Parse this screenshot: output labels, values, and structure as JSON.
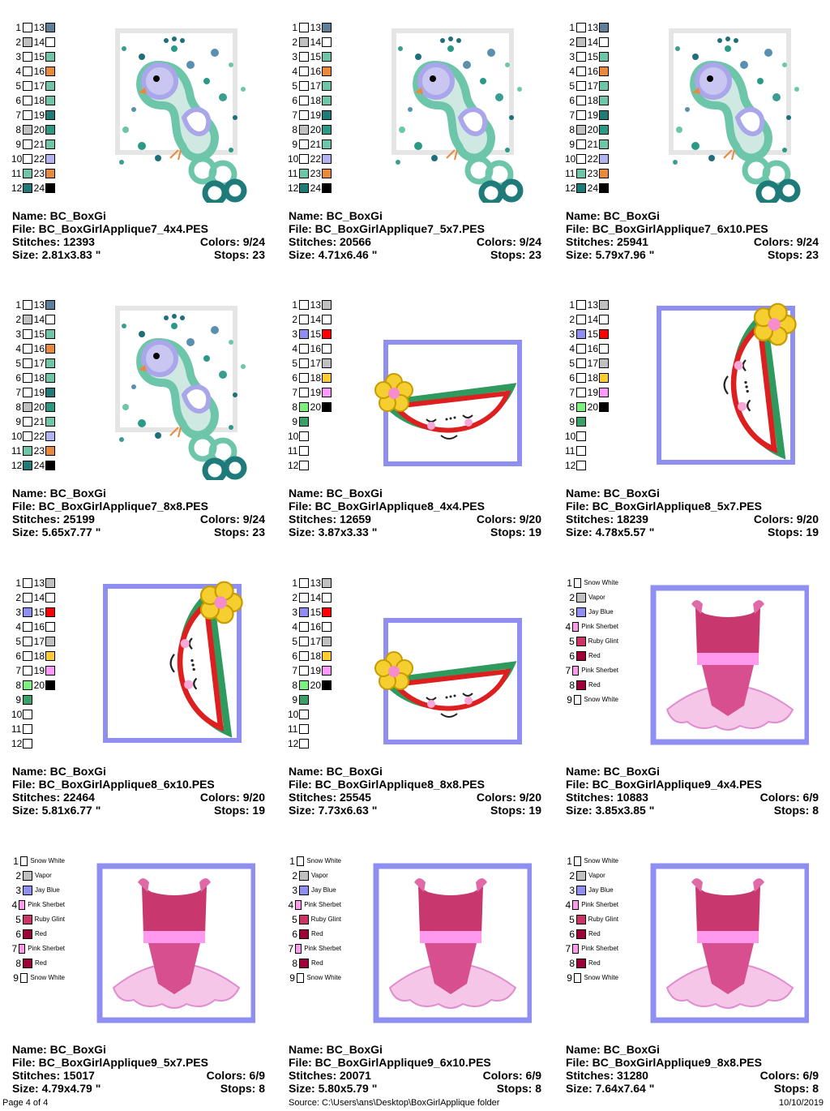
{
  "footer": {
    "page": "Page 4 of 4",
    "source": "Source: C:\\Users\\ans\\Desktop\\BoxGirlApplique folder",
    "date": "10/10/2019"
  },
  "palettes": {
    "peacock": [
      "#ffffff",
      "#c0c0c0",
      "#ffffff",
      "#ffffff",
      "#ffffff",
      "#ffffff",
      "#ffffff",
      "#c0c0c0",
      "#ffffff",
      "#ffffff",
      "#6ec6aa",
      "#1f7a7a",
      "#5e7f99",
      "#ffffff",
      "#6ec6aa",
      "#e88a3a",
      "#6ec6aa",
      "#6ec6aa",
      "#1f7a7a",
      "#2a9a86",
      "#6ec6aa",
      "#b3b3f2",
      "#e88a3a",
      "#000000"
    ],
    "watermelon": [
      "#ffffff",
      "#ffffff",
      "#8f8ff2",
      "#ffffff",
      "#ffffff",
      "#ffffff",
      "#ffffff",
      "#7ef07e",
      "#3aa06a",
      "#ffffff",
      "#ffffff",
      "#ffffff",
      "#c0c0c0",
      "#ffffff",
      "#ff0000",
      "#ffffff",
      "#c0c0c0",
      "#ffcc33",
      "#ff99ff",
      "#000000"
    ],
    "ballerina": [
      "#ffffff",
      "#c0c0c0",
      "#8f8ff2",
      "#ff99ee",
      "#cc3366",
      "#a0003a",
      "#ff99ee",
      "#a0003a",
      "#ffffff"
    ]
  },
  "color_names": [
    "Snow White",
    "Vapor",
    "Jay Blue",
    "Pink Sherbet",
    "Ruby Glint",
    "Red",
    "Pink Sherbet",
    "Red",
    "Snow White"
  ],
  "designs": [
    {
      "art": "peacock",
      "name": "Name: BC_BoxGi",
      "file": "File: BC_BoxGirlApplique7_4x4.PES",
      "stitches": "Stitches: 12393",
      "colors": "Colors: 9/24",
      "size": "Size: 2.81x3.83 \"",
      "stops": "Stops: 23"
    },
    {
      "art": "peacock",
      "name": "Name: BC_BoxGi",
      "file": "File: BC_BoxGirlApplique7_5x7.PES",
      "stitches": "Stitches: 20566",
      "colors": "Colors: 9/24",
      "size": "Size: 4.71x6.46 \"",
      "stops": "Stops: 23"
    },
    {
      "art": "peacock",
      "name": "Name: BC_BoxGi",
      "file": "File: BC_BoxGirlApplique7_6x10.PES",
      "stitches": "Stitches: 25941",
      "colors": "Colors: 9/24",
      "size": "Size: 5.79x7.96 \"",
      "stops": "Stops: 23"
    },
    {
      "art": "peacock",
      "name": "Name: BC_BoxGi",
      "file": "File: BC_BoxGirlApplique7_8x8.PES",
      "stitches": "Stitches: 25199",
      "colors": "Colors: 9/24",
      "size": "Size: 5.65x7.77 \"",
      "stops": "Stops: 23"
    },
    {
      "art": "melon-h",
      "name": "Name: BC_BoxGi",
      "file": "File: BC_BoxGirlApplique8_4x4.PES",
      "stitches": "Stitches: 12659",
      "colors": "Colors: 9/20",
      "size": "Size: 3.87x3.33 \"",
      "stops": "Stops: 19"
    },
    {
      "art": "melon-v",
      "name": "Name: BC_BoxGi",
      "file": "File: BC_BoxGirlApplique8_5x7.PES",
      "stitches": "Stitches: 18239",
      "colors": "Colors: 9/20",
      "size": "Size: 4.78x5.57 \"",
      "stops": "Stops: 19"
    },
    {
      "art": "melon-v",
      "name": "Name: BC_BoxGi",
      "file": "File: BC_BoxGirlApplique8_6x10.PES",
      "stitches": "Stitches: 22464",
      "colors": "Colors: 9/20",
      "size": "Size: 5.81x6.77 \"",
      "stops": "Stops: 19"
    },
    {
      "art": "melon-h",
      "name": "Name: BC_BoxGi",
      "file": "File: BC_BoxGirlApplique8_8x8.PES",
      "stitches": "Stitches: 25545",
      "colors": "Colors: 9/20",
      "size": "Size: 7.73x6.63 \"",
      "stops": "Stops: 19"
    },
    {
      "art": "ballerina",
      "name": "Name: BC_BoxGi",
      "file": "File: BC_BoxGirlApplique9_4x4.PES",
      "stitches": "Stitches: 10883",
      "colors": "Colors: 6/9",
      "size": "Size: 3.85x3.85 \"",
      "stops": "Stops: 8"
    },
    {
      "art": "ballerina",
      "name": "Name: BC_BoxGi",
      "file": "File: BC_BoxGirlApplique9_5x7.PES",
      "stitches": "Stitches: 15017",
      "colors": "Colors: 6/9",
      "size": "Size: 4.79x4.79 \"",
      "stops": "Stops: 8"
    },
    {
      "art": "ballerina",
      "name": "Name: BC_BoxGi",
      "file": "File: BC_BoxGirlApplique9_6x10.PES",
      "stitches": "Stitches: 20071",
      "colors": "Colors: 6/9",
      "size": "Size: 5.80x5.79 \"",
      "stops": "Stops: 8"
    },
    {
      "art": "ballerina",
      "name": "Name: BC_BoxGi",
      "file": "File: BC_BoxGirlApplique9_8x8.PES",
      "stitches": "Stitches: 31280",
      "colors": "Colors: 6/9",
      "size": "Size: 7.64x7.64 \"",
      "stops": "Stops: 8"
    }
  ]
}
